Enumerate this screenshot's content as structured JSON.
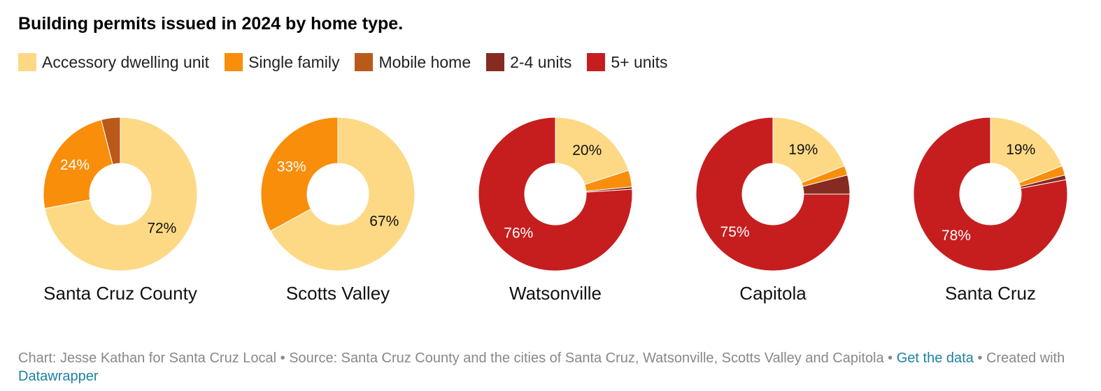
{
  "title": "Building permits issued in 2024 by home type.",
  "legend": [
    {
      "label": "Accessory dwelling unit",
      "color": "#fdd985"
    },
    {
      "label": "Single family",
      "color": "#f98e0a"
    },
    {
      "label": "Mobile home",
      "color": "#b95a1b"
    },
    {
      "label": "2-4 units",
      "color": "#862b21"
    },
    {
      "label": "5+ units",
      "color": "#c61e1e"
    }
  ],
  "chart_data": {
    "type": "pie",
    "variant": "donut",
    "series_names": [
      "Accessory dwelling unit",
      "Single family",
      "Mobile home",
      "2-4 units",
      "5+ units"
    ],
    "pies": [
      {
        "name": "Santa Cruz County",
        "values": [
          72,
          24,
          4,
          0,
          0
        ],
        "labels": [
          "72%",
          "24%",
          "",
          "",
          ""
        ]
      },
      {
        "name": "Scotts Valley",
        "values": [
          67,
          33,
          0,
          0,
          0
        ],
        "labels": [
          "67%",
          "33%",
          "",
          "",
          ""
        ]
      },
      {
        "name": "Watsonville",
        "values": [
          20,
          3.5,
          0,
          0.5,
          76
        ],
        "labels": [
          "20%",
          "",
          "",
          "",
          "76%"
        ]
      },
      {
        "name": "Capitola",
        "values": [
          19,
          2,
          0,
          4,
          75
        ],
        "labels": [
          "19%",
          "",
          "",
          "",
          "75%"
        ]
      },
      {
        "name": "Santa Cruz",
        "values": [
          19,
          2,
          0,
          1,
          78
        ],
        "labels": [
          "19%",
          "",
          "",
          "",
          "78%"
        ]
      }
    ]
  },
  "footer": {
    "prefix": "Chart: Jesse Kathan for Santa Cruz Local • Source: Santa Cruz County and the cities of Santa Cruz, Watsonville, Scotts Valley and Capitola • ",
    "get_data": "Get the data",
    "middle": " • Created with ",
    "datawrapper": "Datawrapper"
  }
}
